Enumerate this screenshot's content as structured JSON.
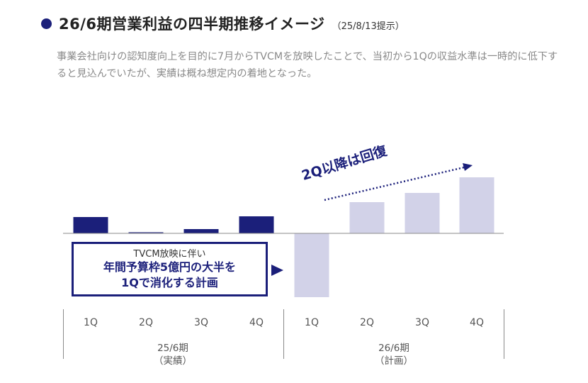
{
  "header": {
    "title": "26/6期営業利益の四半期推移イメージ",
    "note": "（25/8/13提示）",
    "description": "事業会社向けの認知度向上を目的に7月からTVCMを放映したことで、当初から1Qの収益水準は一時的に低下すると見込んでいたが、実績は概ね想定内の着地となった。"
  },
  "callout": {
    "line1": "TVCM放映に伴い",
    "line2": "年間予算枠5億円の大半を",
    "line3": "1Qで消化する計画"
  },
  "annotation": {
    "recovery": "2Q以降は回復"
  },
  "colors": {
    "actual": "#1b1f7a",
    "plan": "#d2d2e8",
    "accent": "#1b1f7a",
    "axis": "#8a8a8a"
  },
  "chart_data": {
    "type": "bar",
    "categories": [
      "1Q",
      "2Q",
      "3Q",
      "4Q",
      "1Q",
      "2Q",
      "3Q",
      "4Q"
    ],
    "groups": [
      {
        "label": "25/6期",
        "sublabel": "（実績）",
        "count": 4
      },
      {
        "label": "26/6期",
        "sublabel": "（計画）",
        "count": 4
      }
    ],
    "values": [
      23,
      1,
      6,
      24,
      -90,
      44,
      57,
      79
    ],
    "value_units": "relative (no numeric axis shown)",
    "series": [
      {
        "name": "実績",
        "values": [
          23,
          1,
          6,
          24,
          null,
          null,
          null,
          null
        ]
      },
      {
        "name": "計画",
        "values": [
          null,
          null,
          null,
          null,
          -90,
          44,
          57,
          79
        ]
      }
    ],
    "ylim": [
      -95,
      82
    ],
    "grid": false,
    "legend": "none"
  }
}
